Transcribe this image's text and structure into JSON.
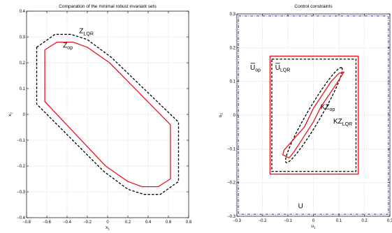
{
  "chart_data": [
    {
      "type": "line",
      "title": "Comparation of the minimal robust invariant sets",
      "xlabel": "x",
      "xlabel_sub": "1",
      "ylabel": "x",
      "ylabel_sub": "2",
      "xlim": [
        -0.8,
        0.8
      ],
      "ylim": [
        -0.4,
        0.4
      ],
      "xticks": [
        -0.8,
        -0.6,
        -0.4,
        -0.2,
        0,
        0.2,
        0.4,
        0.6,
        0.8
      ],
      "xtick_labels": [
        "−0.8",
        "−0.6",
        "−0.4",
        "−0.2",
        "0",
        "0.2",
        "0.4",
        "0.6",
        "0.8"
      ],
      "yticks": [
        -0.4,
        -0.3,
        -0.2,
        -0.1,
        0,
        0.1,
        0.2,
        0.3,
        0.4
      ],
      "ytick_labels": [
        "−0.4",
        "−0.3",
        "−0.2",
        "−0.1",
        "0",
        "0.1",
        "0.2",
        "0.3",
        "0.4"
      ],
      "grid": true,
      "series": [
        {
          "color": "#e8141c",
          "dash": "solid",
          "closed": true,
          "points": [
            [
              -0.62,
              0.25
            ],
            [
              -0.5,
              0.28
            ],
            [
              -0.34,
              0.28
            ],
            [
              -0.2,
              0.26
            ],
            [
              0.02,
              0.2
            ],
            [
              0.62,
              -0.04
            ],
            [
              0.62,
              -0.25
            ],
            [
              0.5,
              -0.28
            ],
            [
              0.34,
              -0.28
            ],
            [
              0.2,
              -0.26
            ],
            [
              -0.02,
              -0.2
            ],
            [
              -0.62,
              0.05
            ]
          ]
        },
        {
          "color": "#000000",
          "dash": "dashed",
          "closed": true,
          "points": [
            [
              -0.7,
              0.26
            ],
            [
              -0.52,
              0.31
            ],
            [
              -0.36,
              0.31
            ],
            [
              -0.2,
              0.29
            ],
            [
              0.04,
              0.22
            ],
            [
              0.7,
              -0.03
            ],
            [
              0.7,
              -0.26
            ],
            [
              0.52,
              -0.31
            ],
            [
              0.36,
              -0.31
            ],
            [
              0.2,
              -0.29
            ],
            [
              -0.04,
              -0.22
            ],
            [
              -0.7,
              0.04
            ]
          ]
        }
      ],
      "annotations": [
        {
          "base": "Z",
          "sub": "LQR",
          "x": -0.28,
          "y": 0.315
        },
        {
          "base": "Z",
          "sub": "op",
          "x": -0.44,
          "y": 0.26
        }
      ]
    },
    {
      "type": "line",
      "title": "Control constraints",
      "xlabel": "u",
      "xlabel_sub": "1",
      "ylabel": "u",
      "ylabel_sub": "2",
      "xlim": [
        -0.3,
        0.3
      ],
      "ylim": [
        -0.3,
        0.3
      ],
      "xticks": [
        -0.3,
        -0.2,
        -0.1,
        0,
        0.1,
        0.2,
        0.3
      ],
      "xtick_labels": [
        "−0.3",
        "−0.2",
        "−0.1",
        "0",
        "0.1",
        "0.2",
        "0.3"
      ],
      "yticks": [
        -0.3,
        -0.2,
        -0.1,
        0,
        0.1,
        0.2,
        0.3
      ],
      "ytick_labels": [
        "−0.3",
        "−0.2",
        "−0.1",
        "0",
        "0.1",
        "0.2",
        "0.3"
      ],
      "grid": true,
      "series": [
        {
          "color": "#1f1fd0",
          "dash": "dashdot",
          "closed": true,
          "points": [
            [
              -0.294,
              0.294
            ],
            [
              0.294,
              0.294
            ],
            [
              0.294,
              -0.294
            ],
            [
              -0.294,
              -0.294
            ]
          ]
        },
        {
          "color": "#e8141c",
          "dash": "solid",
          "closed": true,
          "points": [
            [
              -0.17,
              0.175
            ],
            [
              0.176,
              0.175
            ],
            [
              0.176,
              -0.175
            ],
            [
              -0.17,
              -0.175
            ]
          ]
        },
        {
          "color": "#000000",
          "dash": "dashed",
          "closed": true,
          "points": [
            [
              -0.163,
              0.166
            ],
            [
              0.167,
              0.166
            ],
            [
              0.167,
              -0.167
            ],
            [
              -0.163,
              -0.167
            ]
          ]
        },
        {
          "color": "#000000",
          "dash": "dashed",
          "closed": true,
          "ellipse": {
            "cx": 0.002,
            "cy": 0.0,
            "a": 0.178,
            "b": 0.025,
            "angle_deg": 52
          }
        },
        {
          "color": "#e8141c",
          "dash": "solid",
          "closed": true,
          "points": [
            [
              -0.12,
              -0.118
            ],
            [
              -0.095,
              -0.127
            ],
            [
              -0.075,
              -0.108
            ],
            [
              0.0,
              -0.02
            ],
            [
              0.03,
              0.025
            ],
            [
              0.095,
              0.098
            ],
            [
              0.12,
              0.128
            ],
            [
              0.1,
              0.124
            ],
            [
              0.07,
              0.1
            ],
            [
              0.0,
              0.02
            ],
            [
              -0.035,
              -0.035
            ],
            [
              -0.115,
              -0.104
            ]
          ]
        }
      ],
      "annotations": [
        {
          "base": "U",
          "sub": "op",
          "bar": true,
          "x": -0.248,
          "y": 0.135
        },
        {
          "base": "U",
          "sub": "LQR",
          "bar": true,
          "x": -0.15,
          "y": 0.135
        },
        {
          "base": "KZ",
          "sub": "op",
          "bar": false,
          "x": 0.028,
          "y": 0.018
        },
        {
          "base": "KZ",
          "sub": "LQR",
          "bar": false,
          "x": 0.078,
          "y": -0.025
        },
        {
          "base": "U",
          "sub": "",
          "bar": false,
          "x": -0.06,
          "y": -0.276
        }
      ]
    }
  ]
}
